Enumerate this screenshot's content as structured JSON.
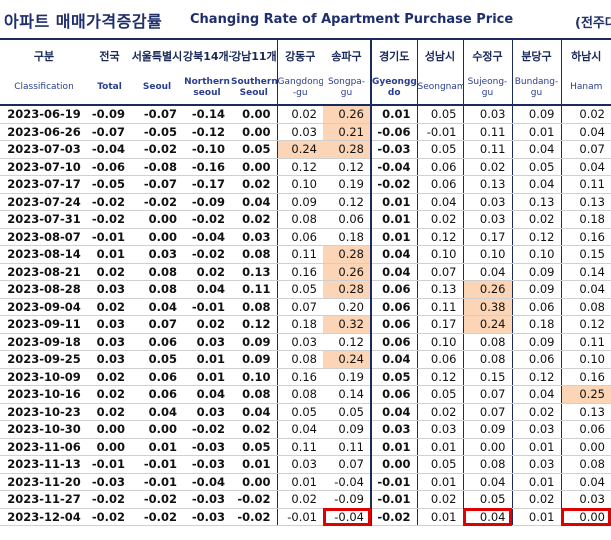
{
  "title": {
    "korean": "아파트 매매가격증감률",
    "english": "Changing Rate of Apartment Purchase Price",
    "unit": "(전주대"
  },
  "headers": {
    "korean": [
      "구분",
      "전국",
      "서울특별시",
      "강북14개구",
      "강남11개구",
      "강동구",
      "송파구",
      "경기도",
      "성남시",
      "수정구",
      "분당구",
      "하남시"
    ],
    "english": [
      "Classification",
      "Total",
      "Seoul",
      "Northern seoul",
      "Southern Seoul",
      "Gangdong -gu",
      "Songpa- gu",
      "Gyeonggi-do",
      "Seongnam",
      "Sujeong-gu",
      "Bundang-gu",
      "Hanam"
    ]
  },
  "rows": [
    {
      "date": "2023-06-19",
      "values": [
        "-0.09",
        "-0.07",
        "-0.14",
        "0.00",
        "0.02",
        "0.26",
        "0.01",
        "0.05",
        "0.03",
        "0.09",
        "0.02"
      ]
    },
    {
      "date": "2023-06-26",
      "values": [
        "-0.07",
        "-0.05",
        "-0.12",
        "0.00",
        "0.03",
        "0.21",
        "-0.06",
        "-0.01",
        "0.11",
        "0.01",
        "0.04"
      ]
    },
    {
      "date": "2023-07-03",
      "values": [
        "-0.04",
        "-0.02",
        "-0.10",
        "0.05",
        "0.24",
        "0.28",
        "-0.03",
        "0.05",
        "0.11",
        "0.04",
        "0.07"
      ]
    },
    {
      "date": "2023-07-10",
      "values": [
        "-0.06",
        "-0.08",
        "-0.16",
        "0.00",
        "0.12",
        "0.12",
        "-0.04",
        "0.06",
        "0.02",
        "0.05",
        "0.04"
      ]
    },
    {
      "date": "2023-07-17",
      "values": [
        "-0.05",
        "-0.07",
        "-0.17",
        "0.02",
        "0.10",
        "0.19",
        "-0.02",
        "0.06",
        "0.13",
        "0.04",
        "0.11"
      ]
    },
    {
      "date": "2023-07-24",
      "values": [
        "-0.02",
        "-0.02",
        "-0.09",
        "0.04",
        "0.09",
        "0.12",
        "0.01",
        "0.04",
        "0.03",
        "0.13",
        "0.13"
      ]
    },
    {
      "date": "2023-07-31",
      "values": [
        "-0.02",
        "0.00",
        "-0.02",
        "0.02",
        "0.08",
        "0.06",
        "0.01",
        "0.02",
        "0.03",
        "0.02",
        "0.18"
      ]
    },
    {
      "date": "2023-08-07",
      "values": [
        "-0.01",
        "0.00",
        "-0.04",
        "0.03",
        "0.06",
        "0.18",
        "0.01",
        "0.12",
        "0.17",
        "0.12",
        "0.16"
      ]
    },
    {
      "date": "2023-08-14",
      "values": [
        "0.01",
        "0.03",
        "-0.02",
        "0.08",
        "0.11",
        "0.28",
        "0.04",
        "0.10",
        "0.10",
        "0.10",
        "0.15"
      ]
    },
    {
      "date": "2023-08-21",
      "values": [
        "0.02",
        "0.08",
        "0.02",
        "0.13",
        "0.16",
        "0.26",
        "0.04",
        "0.07",
        "0.04",
        "0.09",
        "0.14"
      ]
    },
    {
      "date": "2023-08-28",
      "values": [
        "0.03",
        "0.08",
        "0.04",
        "0.11",
        "0.05",
        "0.28",
        "0.06",
        "0.13",
        "0.26",
        "0.09",
        "0.04"
      ]
    },
    {
      "date": "2023-09-04",
      "values": [
        "0.02",
        "0.04",
        "-0.01",
        "0.08",
        "0.07",
        "0.20",
        "0.06",
        "0.11",
        "0.38",
        "0.06",
        "0.08"
      ]
    },
    {
      "date": "2023-09-11",
      "values": [
        "0.03",
        "0.07",
        "0.02",
        "0.12",
        "0.18",
        "0.32",
        "0.06",
        "0.17",
        "0.24",
        "0.18",
        "0.12"
      ]
    },
    {
      "date": "2023-09-18",
      "values": [
        "0.03",
        "0.06",
        "0.03",
        "0.09",
        "0.03",
        "0.12",
        "0.06",
        "0.10",
        "0.08",
        "0.09",
        "0.11"
      ]
    },
    {
      "date": "2023-09-25",
      "values": [
        "0.03",
        "0.05",
        "0.01",
        "0.09",
        "0.08",
        "0.24",
        "0.04",
        "0.06",
        "0.08",
        "0.06",
        "0.10"
      ]
    },
    {
      "date": "2023-10-09",
      "values": [
        "0.02",
        "0.06",
        "0.01",
        "0.10",
        "0.16",
        "0.19",
        "0.05",
        "0.12",
        "0.15",
        "0.12",
        "0.16"
      ]
    },
    {
      "date": "2023-10-16",
      "values": [
        "0.02",
        "0.06",
        "0.04",
        "0.08",
        "0.08",
        "0.14",
        "0.06",
        "0.05",
        "0.07",
        "0.04",
        "0.25"
      ]
    },
    {
      "date": "2023-10-23",
      "values": [
        "0.02",
        "0.04",
        "0.03",
        "0.04",
        "0.05",
        "0.05",
        "0.04",
        "0.02",
        "0.07",
        "0.02",
        "0.13"
      ]
    },
    {
      "date": "2023-10-30",
      "values": [
        "0.00",
        "0.00",
        "-0.02",
        "0.02",
        "0.04",
        "0.09",
        "0.03",
        "0.03",
        "0.09",
        "0.03",
        "0.06"
      ]
    },
    {
      "date": "2023-11-06",
      "values": [
        "0.00",
        "0.01",
        "-0.03",
        "0.05",
        "0.11",
        "0.11",
        "0.01",
        "0.01",
        "0.00",
        "0.01",
        "0.00"
      ]
    },
    {
      "date": "2023-11-13",
      "values": [
        "-0.01",
        "-0.01",
        "-0.03",
        "0.01",
        "0.03",
        "0.07",
        "0.00",
        "0.05",
        "0.08",
        "0.03",
        "0.08"
      ]
    },
    {
      "date": "2023-11-20",
      "values": [
        "-0.03",
        "-0.01",
        "-0.04",
        "0.00",
        "0.01",
        "-0.04",
        "-0.01",
        "0.01",
        "0.04",
        "0.01",
        "0.04"
      ]
    },
    {
      "date": "2023-11-27",
      "values": [
        "-0.02",
        "-0.02",
        "-0.03",
        "-0.02",
        "0.02",
        "-0.09",
        "-0.01",
        "0.02",
        "0.05",
        "0.02",
        "0.03"
      ]
    },
    {
      "date": "2023-12-04",
      "values": [
        "-0.02",
        "-0.02",
        "-0.03",
        "-0.02",
        "-0.01",
        "-0.04",
        "-0.02",
        "0.01",
        "0.04",
        "0.01",
        "0.00"
      ]
    }
  ],
  "highlight_color": "#fbd5b5",
  "box_color": "#e00000",
  "highlights": [
    [
      0,
      5
    ],
    [
      1,
      5
    ],
    [
      2,
      4
    ],
    [
      2,
      5
    ],
    [
      8,
      5
    ],
    [
      9,
      5
    ],
    [
      10,
      5
    ],
    [
      10,
      8
    ],
    [
      11,
      8
    ],
    [
      12,
      5
    ],
    [
      12,
      8
    ],
    [
      14,
      5
    ],
    [
      16,
      10
    ]
  ],
  "boxed": [
    [
      23,
      5
    ],
    [
      23,
      8
    ],
    [
      23,
      10
    ]
  ]
}
